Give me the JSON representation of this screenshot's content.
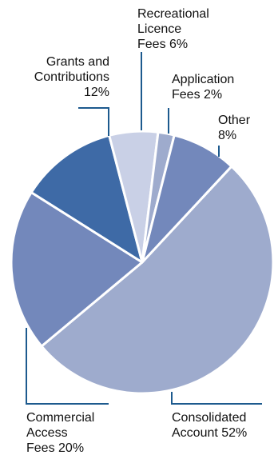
{
  "chart_data": {
    "type": "pie",
    "title": "",
    "slices": [
      {
        "key": "consolidated",
        "value": 52,
        "lines": [
          "Consolidated",
          "Account 52%"
        ],
        "color": "#9eabcd"
      },
      {
        "key": "commercial",
        "value": 20,
        "lines": [
          "Commercial",
          "Access",
          "Fees 20%"
        ],
        "color": "#7388bb"
      },
      {
        "key": "grants",
        "value": 12,
        "lines": [
          "Grants and",
          "Contributions",
          "12%"
        ],
        "color": "#3e6aa6"
      },
      {
        "key": "recreational",
        "value": 6,
        "lines": [
          "Recreational",
          "Licence",
          "Fees 6%"
        ],
        "color": "#c9d0e6"
      },
      {
        "key": "application",
        "value": 2,
        "lines": [
          "Application",
          "Fees 2%"
        ],
        "color": "#9eabcd"
      },
      {
        "key": "other",
        "value": 8,
        "lines": [
          "Other",
          "8%"
        ],
        "color": "#7388bb"
      }
    ],
    "leader_color": "#1d5a8e"
  }
}
